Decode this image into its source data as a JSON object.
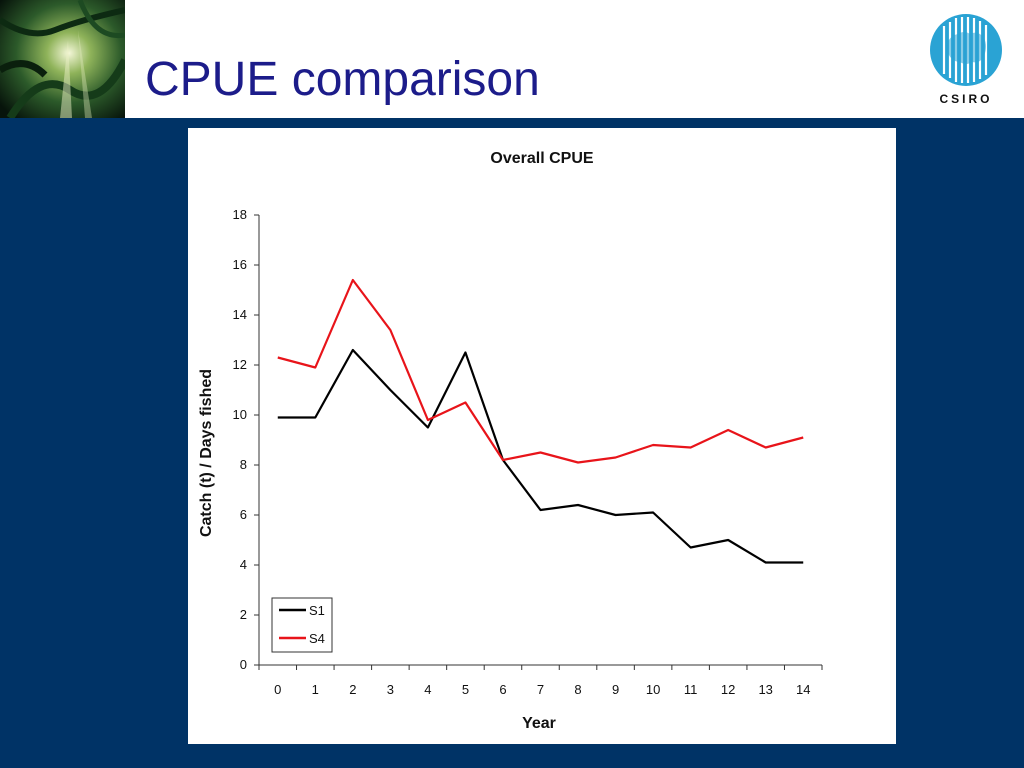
{
  "slide": {
    "title": "CPUE comparison"
  },
  "logo": {
    "text": "CSIRO"
  },
  "colors": {
    "title": "#1c1c8a",
    "band": "#003366",
    "s1": "#000000",
    "s4": "#e8141a",
    "logo": "#2aa3d4"
  },
  "chart_data": {
    "type": "line",
    "title": "Overall CPUE",
    "xlabel": "Year",
    "ylabel": "Catch (t) / Days fished",
    "categories": [
      0,
      1,
      2,
      3,
      4,
      5,
      6,
      7,
      8,
      9,
      10,
      11,
      12,
      13,
      14
    ],
    "ylim": [
      0,
      18
    ],
    "yticks": [
      0,
      2,
      4,
      6,
      8,
      10,
      12,
      14,
      16,
      18
    ],
    "grid": false,
    "legend": "bottom-left",
    "series": [
      {
        "name": "S1",
        "color": "#000000",
        "values": [
          9.9,
          9.9,
          12.6,
          11.0,
          9.5,
          12.5,
          8.2,
          6.2,
          6.4,
          6.0,
          6.1,
          4.7,
          5.0,
          4.1,
          4.1
        ]
      },
      {
        "name": "S4",
        "color": "#e8141a",
        "values": [
          12.3,
          11.9,
          15.4,
          13.4,
          9.8,
          10.5,
          8.2,
          8.5,
          8.1,
          8.3,
          8.8,
          8.7,
          9.4,
          8.7,
          9.1
        ]
      }
    ]
  }
}
